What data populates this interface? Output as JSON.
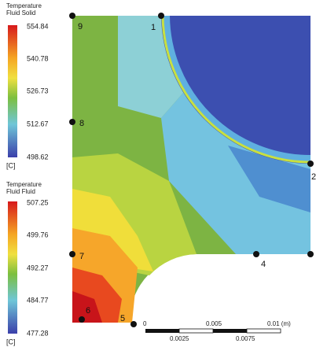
{
  "legends": [
    {
      "title": "Temperature",
      "subtitle": "Fluid Solid",
      "ticks": [
        "554.84",
        "540.78",
        "526.73",
        "512.67",
        "498.62"
      ],
      "unit": "[C]"
    },
    {
      "title": "Temperature",
      "subtitle": "Fluid Fluid",
      "ticks": [
        "507.25",
        "499.76",
        "492.27",
        "484.77",
        "477.28"
      ],
      "unit": "[C]"
    }
  ],
  "nodes": [
    {
      "label": "1"
    },
    {
      "label": "2"
    },
    {
      "label": "4"
    },
    {
      "label": "5"
    },
    {
      "label": "6"
    },
    {
      "label": "7"
    },
    {
      "label": "8"
    },
    {
      "label": "9"
    }
  ],
  "scale_bar": {
    "top_labels": [
      "0",
      "0.005",
      "0.01 (m)"
    ],
    "bottom_labels": [
      "0.0025",
      "0.0075"
    ]
  }
}
